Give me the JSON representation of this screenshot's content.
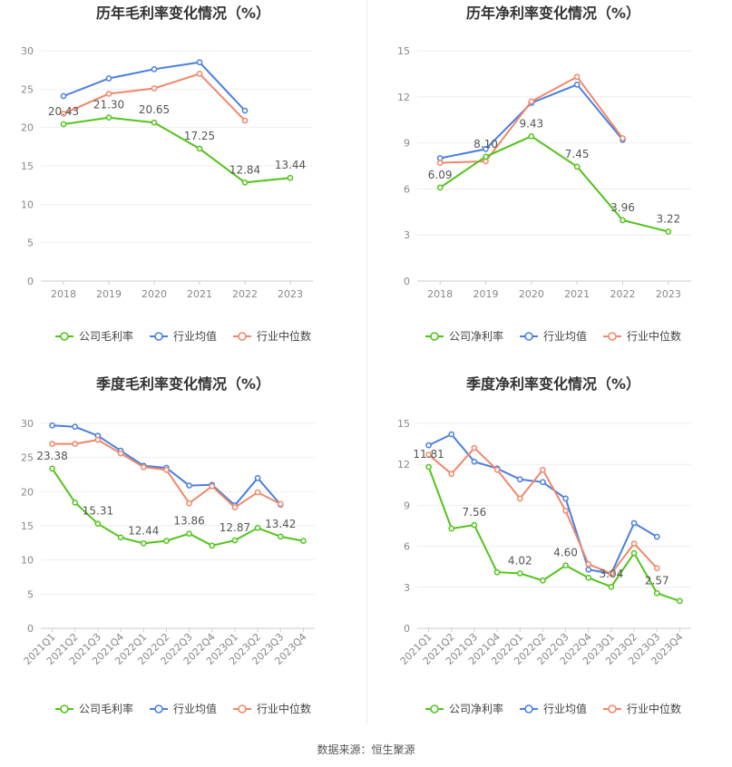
{
  "footer": "数据来源：恒生聚源",
  "colors": {
    "company": "#52c41a",
    "avg": "#4a7fe0",
    "median": "#f0886a",
    "axis": "#cccccc",
    "grid": "#eeeeee",
    "tick": "#888888",
    "label": "#555555"
  },
  "chart_data": [
    {
      "type": "line",
      "title": "历年毛利率变化情况（%）",
      "categories": [
        "2018",
        "2019",
        "2020",
        "2021",
        "2022",
        "2023"
      ],
      "ylim": [
        0,
        30
      ],
      "yticks": [
        0,
        5,
        10,
        15,
        20,
        25,
        30
      ],
      "grid": true,
      "legend": "bottom",
      "series": [
        {
          "name": "公司毛利率",
          "color": "#52c41a",
          "values": [
            20.43,
            21.3,
            20.65,
            17.25,
            12.84,
            13.44
          ],
          "labels": [
            "20.43",
            "21.30",
            "20.65",
            "17.25",
            "12.84",
            "13.44"
          ]
        },
        {
          "name": "行业均值",
          "color": "#4a7fe0",
          "values": [
            24.1,
            26.4,
            27.6,
            28.5,
            22.2,
            null
          ]
        },
        {
          "name": "行业中位数",
          "color": "#f0886a",
          "values": [
            21.8,
            24.4,
            25.1,
            27.0,
            20.9,
            null
          ]
        }
      ]
    },
    {
      "type": "line",
      "title": "历年净利率变化情况（%）",
      "categories": [
        "2018",
        "2019",
        "2020",
        "2021",
        "2022",
        "2023"
      ],
      "ylim": [
        0,
        15
      ],
      "yticks": [
        0,
        3,
        6,
        9,
        12,
        15
      ],
      "grid": true,
      "legend": "bottom",
      "series": [
        {
          "name": "公司净利率",
          "color": "#52c41a",
          "values": [
            6.09,
            8.1,
            9.43,
            7.45,
            3.96,
            3.22
          ],
          "labels": [
            "6.09",
            "8.10",
            "9.43",
            "7.45",
            "3.96",
            "3.22"
          ]
        },
        {
          "name": "行业均值",
          "color": "#4a7fe0",
          "values": [
            8.0,
            8.6,
            11.6,
            12.8,
            9.2,
            null
          ]
        },
        {
          "name": "行业中位数",
          "color": "#f0886a",
          "values": [
            7.7,
            7.8,
            11.7,
            13.3,
            9.3,
            null
          ]
        }
      ]
    },
    {
      "type": "line",
      "title": "季度毛利率变化情况（%）",
      "categories": [
        "2021Q1",
        "2021Q2",
        "2021Q3",
        "2021Q4",
        "2022Q1",
        "2022Q2",
        "2022Q3",
        "2022Q4",
        "2023Q1",
        "2023Q2",
        "2023Q3",
        "2023Q4"
      ],
      "ylim": [
        0,
        30
      ],
      "yticks": [
        0,
        5,
        10,
        15,
        20,
        25,
        30
      ],
      "grid": true,
      "legend": "bottom",
      "series": [
        {
          "name": "公司毛利率",
          "color": "#52c41a",
          "values": [
            23.38,
            18.4,
            15.31,
            13.3,
            12.44,
            12.8,
            13.86,
            12.1,
            12.87,
            14.7,
            13.42,
            12.8
          ],
          "labels": [
            "23.38",
            "",
            "15.31",
            "",
            "12.44",
            "",
            "13.86",
            "",
            "12.87",
            "",
            "13.42",
            ""
          ]
        },
        {
          "name": "行业均值",
          "color": "#4a7fe0",
          "values": [
            29.7,
            29.5,
            28.2,
            26.0,
            23.8,
            23.5,
            20.9,
            21.0,
            18.0,
            22.0,
            18.1,
            null
          ]
        },
        {
          "name": "行业中位数",
          "color": "#f0886a",
          "values": [
            27.0,
            27.0,
            27.6,
            25.6,
            23.6,
            23.2,
            18.3,
            20.8,
            17.7,
            19.9,
            18.2,
            null
          ]
        }
      ]
    },
    {
      "type": "line",
      "title": "季度净利率变化情况（%）",
      "categories": [
        "2021Q1",
        "2021Q2",
        "2021Q3",
        "2021Q4",
        "2022Q1",
        "2022Q2",
        "2022Q3",
        "2022Q4",
        "2023Q1",
        "2023Q2",
        "2023Q3",
        "2023Q4"
      ],
      "ylim": [
        0,
        15
      ],
      "yticks": [
        0,
        3,
        6,
        9,
        12,
        15
      ],
      "grid": true,
      "legend": "bottom",
      "series": [
        {
          "name": "公司净利率",
          "color": "#52c41a",
          "values": [
            11.81,
            7.3,
            7.56,
            4.1,
            4.02,
            3.5,
            4.6,
            3.7,
            3.04,
            5.5,
            2.57,
            2.0
          ],
          "labels": [
            "11.81",
            "",
            "7.56",
            "",
            "4.02",
            "",
            "4.60",
            "",
            "3.04",
            "",
            "2.57",
            ""
          ]
        },
        {
          "name": "行业均值",
          "color": "#4a7fe0",
          "values": [
            13.4,
            14.2,
            12.2,
            11.7,
            10.9,
            10.7,
            9.5,
            4.3,
            4.0,
            7.7,
            6.7,
            null
          ]
        },
        {
          "name": "行业中位数",
          "color": "#f0886a",
          "values": [
            12.7,
            11.3,
            13.2,
            11.6,
            9.5,
            11.6,
            8.6,
            4.7,
            4.0,
            6.2,
            4.4,
            null
          ]
        }
      ]
    }
  ]
}
